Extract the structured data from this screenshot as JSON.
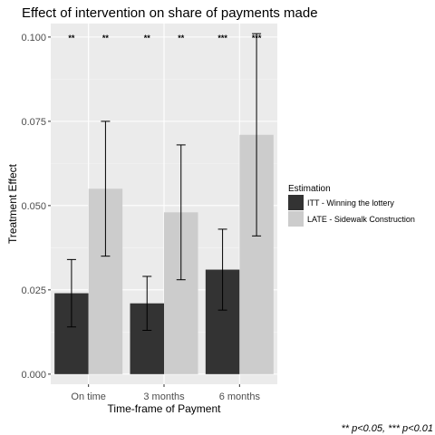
{
  "chart_data": {
    "type": "bar",
    "title": "Effect of intervention on share of payments made",
    "xlabel": "Time-frame of Payment",
    "ylabel": "Treatment Effect",
    "categories": [
      "On time",
      "3 months",
      "6 months"
    ],
    "ylim": [
      -0.003,
      0.104
    ],
    "yticks": [
      "0.000",
      "0.025",
      "0.050",
      "0.075",
      "0.100"
    ],
    "grid": true,
    "legend_title": "Estimation",
    "legend_position": "right",
    "series": [
      {
        "name": "ITT - Winning the lottery",
        "color": "#333333",
        "values": [
          0.024,
          0.021,
          0.031
        ],
        "error_low": [
          0.014,
          0.013,
          0.019
        ],
        "error_high": [
          0.034,
          0.029,
          0.043
        ],
        "significance": [
          "**",
          "**",
          "***"
        ]
      },
      {
        "name": "LATE - Sidewalk Construction",
        "color": "#cccccc",
        "values": [
          0.055,
          0.048,
          0.071
        ],
        "error_low": [
          0.035,
          0.028,
          0.041
        ],
        "error_high": [
          0.075,
          0.068,
          0.101
        ],
        "significance": [
          "**",
          "**",
          "***"
        ]
      }
    ],
    "footnote": "** p<0.05, *** p<0.01"
  }
}
